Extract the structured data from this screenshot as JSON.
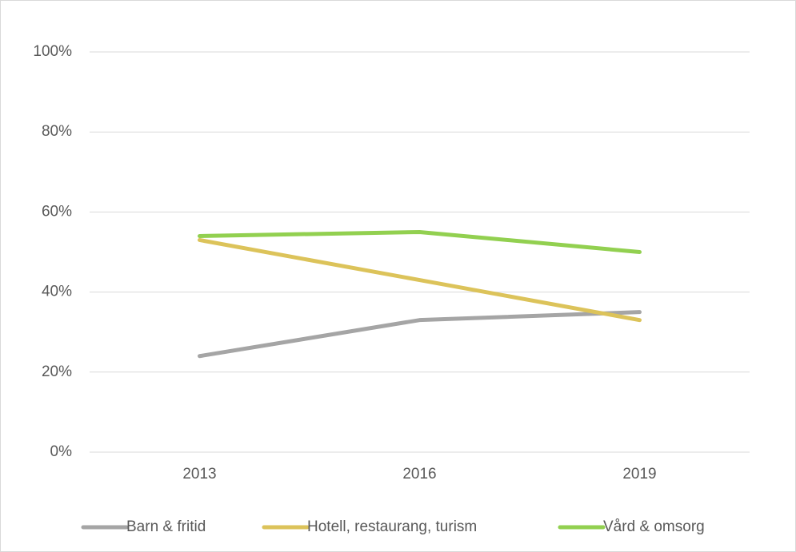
{
  "chart_data": {
    "type": "line",
    "categories": [
      "2013",
      "2016",
      "2019"
    ],
    "series": [
      {
        "name": "Barn & fritid",
        "color": "#a5a5a5",
        "values": [
          24,
          33,
          35
        ]
      },
      {
        "name": "Hotell, restaurang, turism",
        "color": "#dcc35a",
        "values": [
          53,
          43,
          33
        ]
      },
      {
        "name": "Vård & omsorg",
        "color": "#92d050",
        "values": [
          54,
          55,
          50
        ]
      }
    ],
    "ylim": [
      0,
      100
    ],
    "yticks": [
      {
        "value": 0,
        "label": "0%"
      },
      {
        "value": 20,
        "label": "20%"
      },
      {
        "value": 40,
        "label": "40%"
      },
      {
        "value": 60,
        "label": "60%"
      },
      {
        "value": 80,
        "label": "80%"
      },
      {
        "value": 100,
        "label": "100%"
      }
    ],
    "grid": true,
    "legend": "bottom"
  }
}
